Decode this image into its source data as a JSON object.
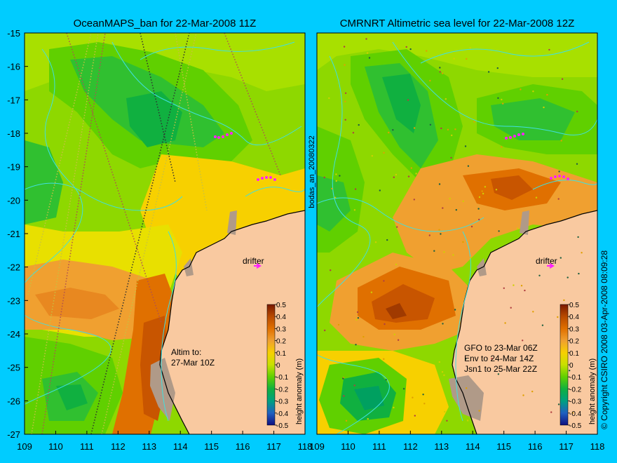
{
  "panels": [
    {
      "title": "OceanMAPS_ban for 22-Mar-2008 11Z",
      "annotation_lines": [
        "Altim to:",
        "27-Mar 10Z"
      ],
      "drifter_label": "drifter"
    },
    {
      "title": "CMRNRT Altimetric sea level  for 22-Mar-2008 12Z",
      "annotation_lines": [
        "GFO to 23-Mar 06Z",
        "Env to 24-Mar 14Z",
        "Jsn1 to 25-Mar 22Z"
      ],
      "drifter_label": "drifter"
    }
  ],
  "axes": {
    "x_ticks": [
      "109",
      "110",
      "111",
      "112",
      "113",
      "114",
      "115",
      "116",
      "117",
      "118"
    ],
    "y_ticks": [
      "-15",
      "-16",
      "-17",
      "-18",
      "-19",
      "-20",
      "-21",
      "-22",
      "-23",
      "-24",
      "-25",
      "-26",
      "-27"
    ]
  },
  "colorbar": {
    "label": "height anomaly (m)",
    "ticks": [
      "0.5",
      "0.4",
      "0.3",
      "0.2",
      "0.1",
      "0",
      "-0.1",
      "-0.2",
      "-0.3",
      "-0.4",
      "-0.5"
    ],
    "colors": [
      "#7a1a00",
      "#b84a00",
      "#e07000",
      "#f0a030",
      "#f7d000",
      "#c8e000",
      "#60d000",
      "#10b040",
      "#00a080",
      "#2060c0",
      "#101080"
    ]
  },
  "side_labels": {
    "left_vertical": "bodas_an_20080322",
    "right_vertical": "© Copyright CSIRO 2008  03-Apr-2008 08:09:28"
  },
  "colors": {
    "background": "#00ccff",
    "land": "#f9c9a0",
    "contour": "#40e0e0"
  }
}
